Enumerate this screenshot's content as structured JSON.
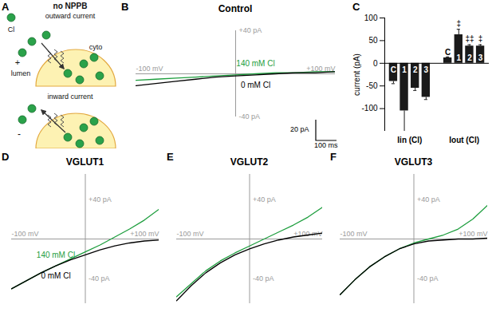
{
  "chart_data": [
    {
      "type": "diagram",
      "panel": "A",
      "title": "no NPPB",
      "ion": "Cl",
      "upper": {
        "caption": "outward current",
        "inside": "cyto",
        "outside": "lumen",
        "sign": "+"
      },
      "lower": {
        "caption": "inward current",
        "sign": "-"
      }
    },
    {
      "type": "line",
      "panel": "B",
      "title": "Control",
      "x": [
        -100,
        -80,
        -60,
        -40,
        -20,
        0,
        20,
        40,
        60,
        80,
        100
      ],
      "xlim": [
        -100,
        100
      ],
      "xticks": [
        {
          "value": -100,
          "label": "-100 mV"
        },
        {
          "value": 100,
          "label": "+100 mV"
        }
      ],
      "ylim": [
        -40,
        40
      ],
      "yticks": [
        {
          "value": 40,
          "label": "+40 pA"
        },
        {
          "value": -40,
          "label": "-40 pA"
        }
      ],
      "series": [
        {
          "name": "140 mM Cl",
          "color": "#1e9e3e",
          "values": [
            -6,
            -5,
            -4,
            -3,
            -2,
            -1,
            0,
            1,
            1,
            2,
            2
          ]
        },
        {
          "name": "0 mM Cl",
          "color": "#000000",
          "values": [
            -11,
            -9,
            -7,
            -5,
            -3,
            -2,
            -1,
            0,
            1,
            1,
            2
          ]
        }
      ],
      "annotations": [
        "20 pA",
        "100 ms"
      ]
    },
    {
      "type": "bar",
      "panel": "C",
      "ylabel": "current (pA)",
      "categories": [
        "C",
        "1",
        "2",
        "3"
      ],
      "ylim": [
        -150,
        100
      ],
      "yticks": [
        -100,
        -50,
        0,
        50,
        100
      ],
      "color": "#1a1a1a",
      "series": [
        {
          "name": "Iin (Cl)",
          "values": [
            -40,
            -105,
            -55,
            -75
          ],
          "errors": [
            5,
            45,
            5,
            5
          ]
        },
        {
          "name": "Iout (Cl)",
          "values": [
            12,
            63,
            38,
            38
          ],
          "errors": [
            2,
            12,
            3,
            3
          ],
          "significance": [
            null,
            "‡",
            "‡‡",
            "‡"
          ]
        }
      ]
    },
    {
      "type": "line",
      "panel": "D",
      "title": "VGLUT1",
      "x": [
        -100,
        -80,
        -60,
        -40,
        -20,
        0,
        20,
        40,
        60,
        80,
        100
      ],
      "xlim": [
        -100,
        100
      ],
      "xticks": [
        {
          "value": -100,
          "label": "-100 mV"
        },
        {
          "value": 100,
          "label": "+100 mV"
        }
      ],
      "ylim": [
        -65,
        65
      ],
      "yticks": [
        {
          "value": 40,
          "label": "+40 pA"
        },
        {
          "value": -40,
          "label": "-40 pA"
        }
      ],
      "series": [
        {
          "name": "140 mM Cl",
          "color": "#1e9e3e",
          "values": [
            -50,
            -42,
            -34,
            -27,
            -20,
            -13,
            -6,
            2,
            10,
            19,
            30
          ]
        },
        {
          "name": "0 mM Cl",
          "color": "#000000",
          "values": [
            -50,
            -42,
            -34,
            -27,
            -21,
            -16,
            -11,
            -7,
            -4,
            -2,
            -1
          ]
        }
      ]
    },
    {
      "type": "line",
      "panel": "E",
      "title": "VGLUT2",
      "x": [
        -100,
        -80,
        -60,
        -40,
        -20,
        0,
        20,
        40,
        60,
        80,
        100
      ],
      "xlim": [
        -100,
        100
      ],
      "xticks": [
        {
          "value": -100,
          "label": "-100 mV"
        },
        {
          "value": 100,
          "label": "+100 mV"
        }
      ],
      "ylim": [
        -65,
        65
      ],
      "yticks": [
        {
          "value": 40,
          "label": "+40 pA"
        },
        {
          "value": -40,
          "label": "-40 pA"
        }
      ],
      "series": [
        {
          "color": "#1e9e3e",
          "values": [
            -58,
            -45,
            -32,
            -22,
            -14,
            -7,
            0,
            7,
            14,
            22,
            32
          ]
        },
        {
          "color": "#000000",
          "values": [
            -62,
            -47,
            -34,
            -24,
            -16,
            -10,
            -5,
            -1,
            2,
            4,
            6
          ]
        }
      ]
    },
    {
      "type": "line",
      "panel": "F",
      "title": "VGLUT3",
      "x": [
        -100,
        -80,
        -60,
        -40,
        -20,
        0,
        20,
        40,
        60,
        80,
        100
      ],
      "xlim": [
        -100,
        100
      ],
      "xticks": [
        {
          "value": -100,
          "label": "-100 mV"
        },
        {
          "value": 100,
          "label": "+100 mV"
        }
      ],
      "ylim": [
        -65,
        65
      ],
      "yticks": [
        {
          "value": 40,
          "label": "+40 pA"
        },
        {
          "value": -40,
          "label": "-40 pA"
        }
      ],
      "series": [
        {
          "color": "#1e9e3e",
          "values": [
            -56,
            -41,
            -28,
            -18,
            -10,
            -4,
            0,
            4,
            10,
            20,
            34
          ]
        },
        {
          "color": "#000000",
          "values": [
            -56,
            -41,
            -28,
            -18,
            -10,
            -5,
            -2,
            -1,
            0,
            0,
            1
          ]
        }
      ]
    }
  ]
}
